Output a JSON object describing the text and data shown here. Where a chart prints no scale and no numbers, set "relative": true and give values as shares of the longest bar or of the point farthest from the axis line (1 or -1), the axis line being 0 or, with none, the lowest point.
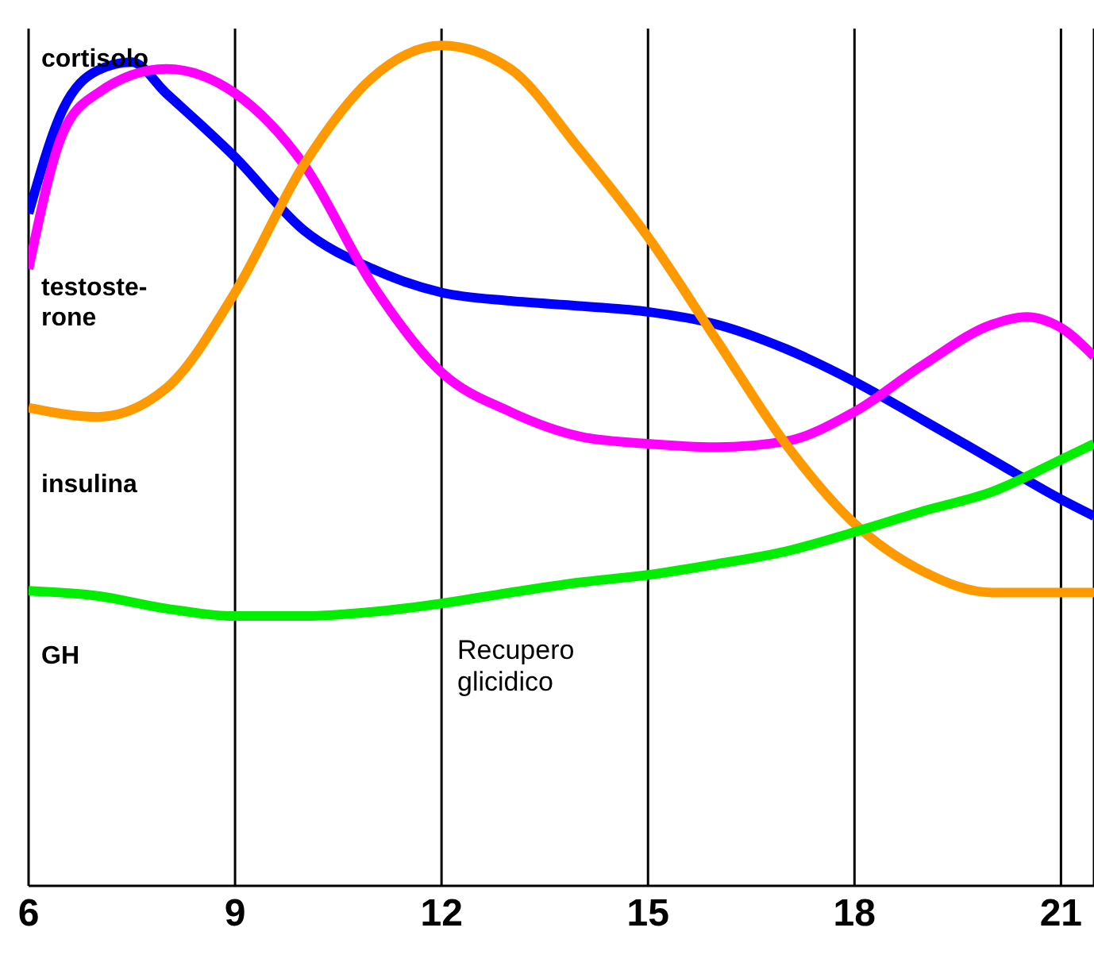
{
  "chart_data": {
    "type": "line",
    "relative": true,
    "grid": "x",
    "legend": false,
    "marker": "none",
    "line_style": "solid",
    "xlim": [
      6,
      21.48
    ],
    "xticks": [
      6,
      9,
      12,
      15,
      18,
      21
    ],
    "annotations": [
      "Recupero glicidico"
    ],
    "series": [
      {
        "name": "cortisolo",
        "color": "#0000ff",
        "x": [
          6,
          6.5,
          7,
          7.5,
          8,
          9,
          10,
          11,
          12,
          13,
          14,
          15,
          16,
          17,
          18,
          19,
          20,
          21,
          21.48
        ],
        "values": [
          0.8,
          0.924,
          0.97,
          0.98,
          0.943,
          0.867,
          0.78,
          0.734,
          0.706,
          0.696,
          0.69,
          0.683,
          0.668,
          0.639,
          0.6,
          0.554,
          0.507,
          0.46,
          0.44
        ]
      },
      {
        "name": "testoste-rone",
        "color": "#ff00ff",
        "x": [
          6,
          6.5,
          7,
          8,
          9,
          10,
          11,
          12,
          13,
          14,
          15,
          16,
          17,
          18,
          19,
          20,
          20.5,
          21,
          21.48
        ],
        "values": [
          0.734,
          0.896,
          0.943,
          0.972,
          0.943,
          0.858,
          0.715,
          0.611,
          0.564,
          0.535,
          0.526,
          0.522,
          0.529,
          0.564,
          0.62,
          0.668,
          0.677,
          0.664,
          0.63
        ]
      },
      {
        "name": "insulina",
        "color": "#ff9900",
        "x": [
          6,
          7,
          8,
          9,
          10,
          11,
          12,
          13,
          14,
          15,
          16,
          17,
          18,
          19,
          20,
          21,
          21.48
        ],
        "values": [
          0.569,
          0.558,
          0.592,
          0.706,
          0.858,
          0.962,
          1,
          0.972,
          0.877,
          0.772,
          0.649,
          0.526,
          0.431,
          0.374,
          0.349,
          0.349,
          0.349
        ]
      },
      {
        "name": "GH",
        "color": "#00ee00",
        "x": [
          6,
          7,
          8,
          9,
          10,
          11,
          12,
          13,
          14,
          15,
          16,
          17,
          18,
          19,
          20,
          21,
          21.48
        ],
        "values": [
          0.351,
          0.345,
          0.33,
          0.321,
          0.321,
          0.326,
          0.336,
          0.349,
          0.361,
          0.37,
          0.383,
          0.398,
          0.421,
          0.446,
          0.469,
          0.507,
          0.526
        ]
      }
    ]
  }
}
